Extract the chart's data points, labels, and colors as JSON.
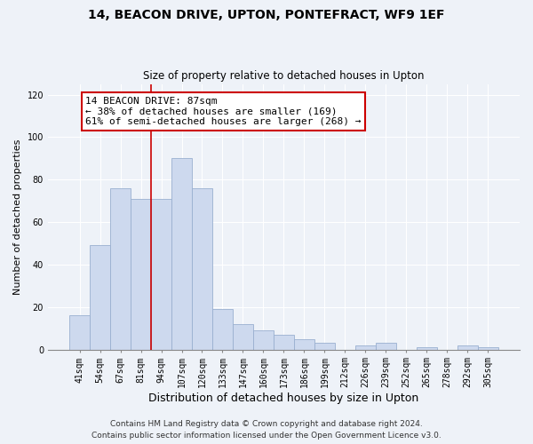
{
  "title1": "14, BEACON DRIVE, UPTON, PONTEFRACT, WF9 1EF",
  "title2": "Size of property relative to detached houses in Upton",
  "xlabel": "Distribution of detached houses by size in Upton",
  "ylabel": "Number of detached properties",
  "bar_labels": [
    "41sqm",
    "54sqm",
    "67sqm",
    "81sqm",
    "94sqm",
    "107sqm",
    "120sqm",
    "133sqm",
    "147sqm",
    "160sqm",
    "173sqm",
    "186sqm",
    "199sqm",
    "212sqm",
    "226sqm",
    "239sqm",
    "252sqm",
    "265sqm",
    "278sqm",
    "292sqm",
    "305sqm"
  ],
  "bar_values": [
    16,
    49,
    76,
    71,
    71,
    90,
    76,
    19,
    12,
    9,
    7,
    5,
    3,
    0,
    2,
    3,
    0,
    1,
    0,
    2,
    1
  ],
  "bar_color": "#cdd9ee",
  "bar_edge_color": "#9ab0d0",
  "vline_x_idx": 3.5,
  "vline_color": "#cc0000",
  "annotation_line1": "14 BEACON DRIVE: 87sqm",
  "annotation_line2": "← 38% of detached houses are smaller (169)",
  "annotation_line3": "61% of semi-detached houses are larger (268) →",
  "annotation_box_color": "#ffffff",
  "annotation_box_edge": "#cc0000",
  "ylim": [
    0,
    125
  ],
  "yticks": [
    0,
    20,
    40,
    60,
    80,
    100,
    120
  ],
  "footer1": "Contains HM Land Registry data © Crown copyright and database right 2024.",
  "footer2": "Contains public sector information licensed under the Open Government Licence v3.0.",
  "background_color": "#eef2f8",
  "plot_background": "#eef2f8",
  "grid_color": "#ffffff",
  "title1_fontsize": 10,
  "title2_fontsize": 8.5,
  "xlabel_fontsize": 9,
  "ylabel_fontsize": 8,
  "tick_fontsize": 7,
  "annotation_fontsize": 8,
  "footer_fontsize": 6.5
}
